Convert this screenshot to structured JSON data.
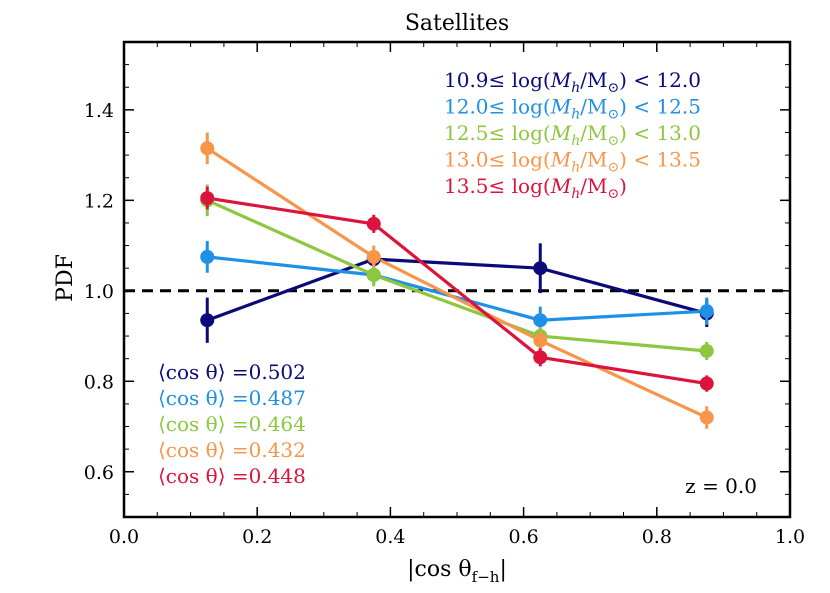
{
  "chart_data": {
    "type": "line",
    "title": "Satellites",
    "xlabel": "|cos θf−h|",
    "xlabel_main": "|cos θ",
    "xlabel_sub": "f−h",
    "xlabel_end": "|",
    "ylabel": "PDF",
    "xlim": [
      0.0,
      1.0
    ],
    "ylim": [
      0.5,
      1.55
    ],
    "xticks": [
      0.0,
      0.2,
      0.4,
      0.6,
      0.8,
      1.0
    ],
    "xtick_labels": [
      "0.0",
      "0.2",
      "0.4",
      "0.6",
      "0.8",
      "1.0"
    ],
    "yticks": [
      0.6,
      0.8,
      1.0,
      1.2,
      1.4
    ],
    "ytick_labels": [
      "0.6",
      "0.8",
      "1.0",
      "1.2",
      "1.4"
    ],
    "x": [
      0.125,
      0.375,
      0.625,
      0.875
    ],
    "reference_line": {
      "y": 1.0,
      "style": "dashed",
      "color": "#000000"
    },
    "series": [
      {
        "name": "10.9≤ log(Mh/M⊙) < 12.0",
        "legend_prefix": "10.9≤ log(",
        "legend_mid": "/M",
        "legend_suffix": ") < 12.0",
        "mean_label": "⟨cos θ⟩ =0.502",
        "color": "#0a0a78",
        "values": [
          0.935,
          1.07,
          1.05,
          0.95
        ],
        "errors": [
          0.05,
          0.02,
          0.055,
          0.03
        ]
      },
      {
        "name": "12.0≤ log(Mh/M⊙) < 12.5",
        "legend_prefix": "12.0≤ log(",
        "legend_mid": "/M",
        "legend_suffix": ") < 12.5",
        "mean_label": "⟨cos θ⟩ =0.487",
        "color": "#1e90e6",
        "values": [
          1.075,
          1.035,
          0.935,
          0.955
        ],
        "errors": [
          0.035,
          0.02,
          0.03,
          0.03
        ]
      },
      {
        "name": "12.5≤ log(Mh/M⊙) < 13.0",
        "legend_prefix": "12.5≤ log(",
        "legend_mid": "/M",
        "legend_suffix": ") < 13.0",
        "mean_label": "⟨cos θ⟩ =0.464",
        "color": "#8dc63f",
        "values": [
          1.2,
          1.035,
          0.9,
          0.867
        ],
        "errors": [
          0.035,
          0.025,
          0.02,
          0.02
        ]
      },
      {
        "name": "13.0≤ log(Mh/M⊙) < 13.5",
        "legend_prefix": "13.0≤ log(",
        "legend_mid": "/M",
        "legend_suffix": ") < 13.5",
        "mean_label": "⟨cos θ⟩ =0.432",
        "color": "#f7964a",
        "values": [
          1.315,
          1.075,
          0.89,
          0.72
        ],
        "errors": [
          0.035,
          0.025,
          0.02,
          0.025
        ]
      },
      {
        "name": "13.5≤ log(Mh/M⊙)",
        "legend_prefix": "13.5≤ log(",
        "legend_mid": "/M",
        "legend_suffix": ")",
        "mean_label": "⟨cos θ⟩ =0.448",
        "color": "#dc143c",
        "values": [
          1.205,
          1.148,
          0.853,
          0.795
        ],
        "errors": [
          0.025,
          0.02,
          0.02,
          0.018
        ]
      }
    ],
    "annotation": "z = 0.0",
    "legend_position": "top-right",
    "mean_legend_position": "bottom-left",
    "grid": false
  }
}
